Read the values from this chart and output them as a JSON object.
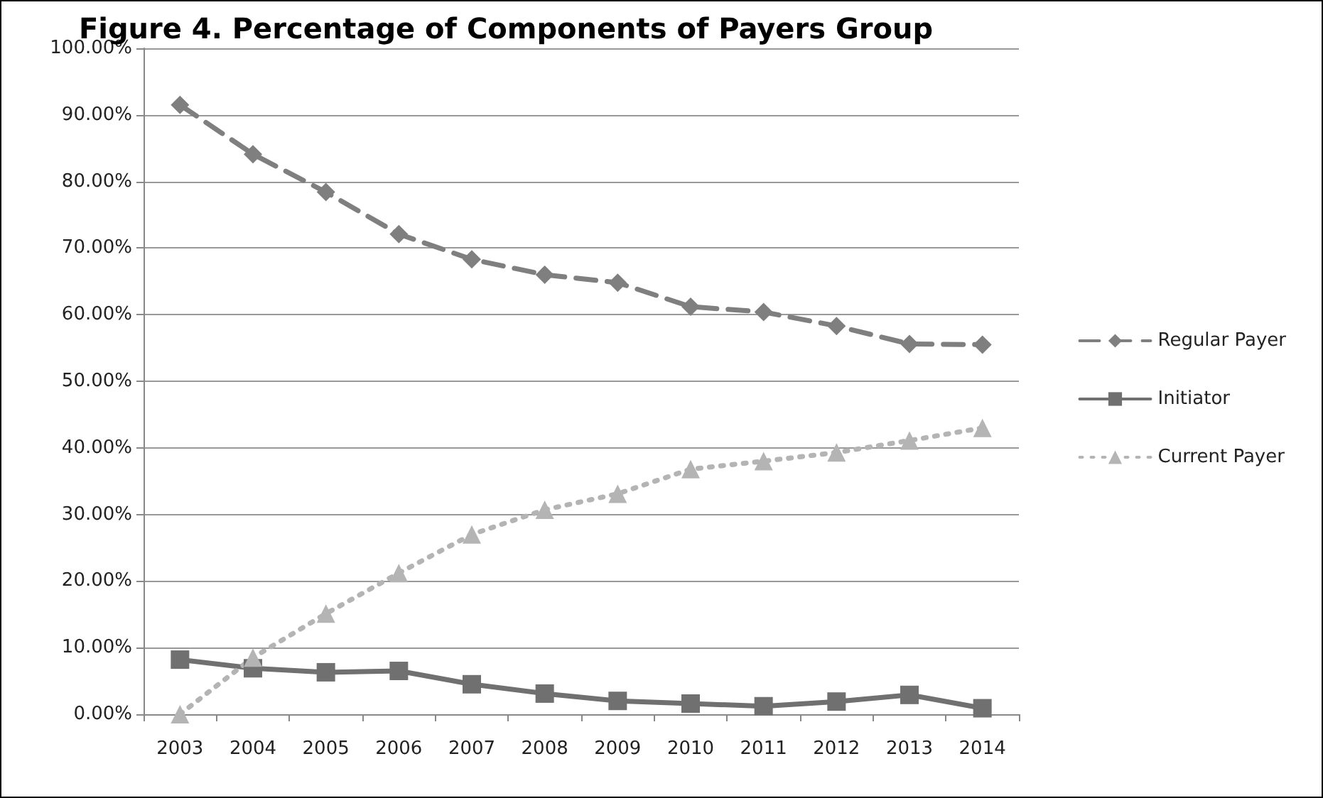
{
  "chart_data": {
    "type": "line",
    "title": "Figure 4. Percentage of Components of Payers Group",
    "categories": [
      "2003",
      "2004",
      "2005",
      "2006",
      "2007",
      "2008",
      "2009",
      "2010",
      "2011",
      "2012",
      "2013",
      "2014"
    ],
    "series": [
      {
        "name": "Regular Payer",
        "color": "#7f7f7f",
        "marker": "diamond",
        "line_style": "dashed",
        "values": [
          91.5,
          84.1,
          78.4,
          72.1,
          68.3,
          66.0,
          64.8,
          61.2,
          60.4,
          58.3,
          55.6,
          55.5
        ]
      },
      {
        "name": "Initiator",
        "color": "#707070",
        "marker": "square",
        "line_style": "solid",
        "values": [
          8.2,
          6.9,
          6.3,
          6.5,
          4.5,
          3.1,
          2.0,
          1.6,
          1.2,
          1.9,
          2.9,
          0.9
        ]
      },
      {
        "name": "Current Payer",
        "color": "#b4b4b4",
        "marker": "triangle",
        "line_style": "dotted",
        "values": [
          0,
          8.5,
          15.1,
          21.2,
          27.0,
          30.7,
          33.1,
          36.8,
          38.0,
          39.3,
          41.1,
          43.0
        ]
      }
    ],
    "ylim": [
      0,
      100
    ],
    "yticks": [
      {
        "value": 0,
        "label": "0.00%"
      },
      {
        "value": 10,
        "label": "10.00%"
      },
      {
        "value": 20,
        "label": "20.00%"
      },
      {
        "value": 30,
        "label": "30.00%"
      },
      {
        "value": 40,
        "label": "40.00%"
      },
      {
        "value": 50,
        "label": "50.00%"
      },
      {
        "value": 60,
        "label": "60.00%"
      },
      {
        "value": 70,
        "label": "70.00%"
      },
      {
        "value": 80,
        "label": "80.00%"
      },
      {
        "value": 90,
        "label": "90.00%"
      },
      {
        "value": 100,
        "label": "100.00%"
      }
    ],
    "grid": "y",
    "legend": "right"
  }
}
